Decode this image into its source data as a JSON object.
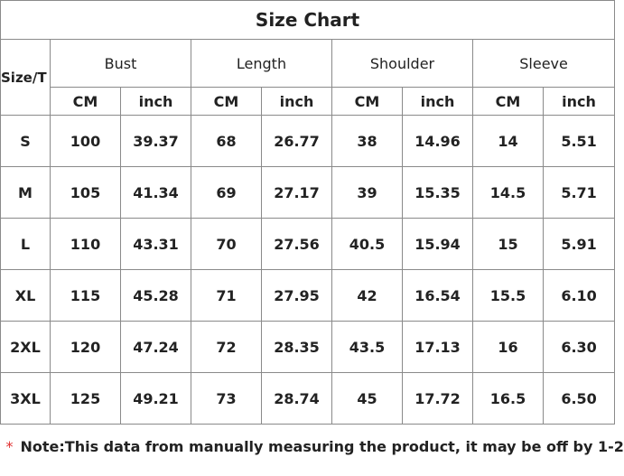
{
  "title": "Size Chart",
  "header": {
    "first": "Size/T",
    "groups": [
      "Bust",
      "Length",
      "Shoulder",
      "Sleeve"
    ],
    "units": [
      "CM",
      "inch",
      "CM",
      "inch",
      "CM",
      "inch",
      "CM",
      "inch"
    ]
  },
  "rows": [
    [
      "S",
      "100",
      "39.37",
      "68",
      "26.77",
      "38",
      "14.96",
      "14",
      "5.51"
    ],
    [
      "M",
      "105",
      "41.34",
      "69",
      "27.17",
      "39",
      "15.35",
      "14.5",
      "5.71"
    ],
    [
      "L",
      "110",
      "43.31",
      "70",
      "27.56",
      "40.5",
      "15.94",
      "15",
      "5.91"
    ],
    [
      "XL",
      "115",
      "45.28",
      "71",
      "27.95",
      "42",
      "16.54",
      "15.5",
      "6.10"
    ],
    [
      "2XL",
      "120",
      "47.24",
      "72",
      "28.35",
      "43.5",
      "17.13",
      "16",
      "6.30"
    ],
    [
      "3XL",
      "125",
      "49.21",
      "73",
      "28.74",
      "45",
      "17.72",
      "16.5",
      "6.50"
    ]
  ],
  "note": {
    "mark": "*",
    "text": "Note:This data from manually measuring the product, it may be off by 1-2"
  }
}
